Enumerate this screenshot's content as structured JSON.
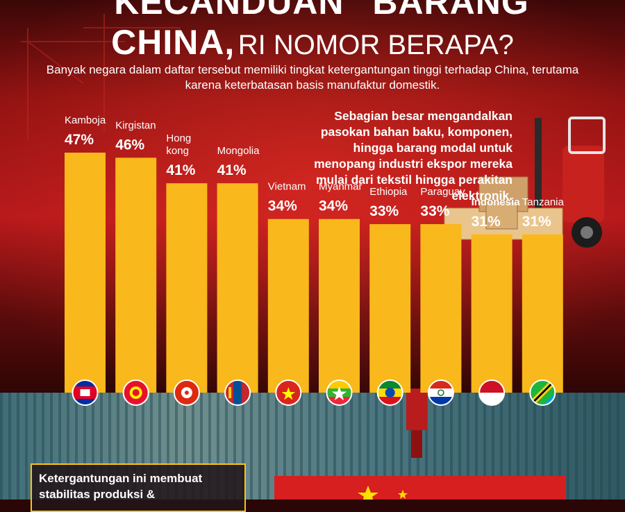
{
  "title_line1": "“KECANDUAN” BARANG",
  "title_line2_strong": "CHINA,",
  "title_line2_light": "RI NOMOR BERAPA?",
  "subtitle": "Banyak negara dalam daftar tersebut memiliki tingkat ketergantungan tinggi terhadap China, terutama karena keterbatasan basis manufaktur domestik.",
  "side_note": "Sebagian besar mengandalkan pasokan bahan baku, komponen, hingga barang modal untuk menopang industri ekspor mereka mulai dari tekstil hingga perakitan elektronik.",
  "bottom_note": "Ketergantungan ini membuat stabilitas produksi &",
  "colors": {
    "bar": "#f9b81b",
    "highlight": "#ffffff",
    "background": "#8e1111",
    "accent": "#f7c518"
  },
  "chart_data": {
    "type": "bar",
    "categories": [
      "Kamboja",
      "Kirgistan",
      "Hong kong",
      "Mongolia",
      "Vietnam",
      "Myanmar",
      "Ethiopia",
      "Paraguay",
      "Indonesia",
      "Tanzania"
    ],
    "values": [
      47,
      46,
      41,
      41,
      34,
      34,
      33,
      33,
      31,
      31
    ],
    "data_labels": [
      "47%",
      "46%",
      "41%",
      "41%",
      "34%",
      "34%",
      "33%",
      "33%",
      "31%",
      "31%"
    ],
    "highlight": "Indonesia",
    "flags": [
      "cambodia-flag-icon",
      "kyrgyzstan-flag-icon",
      "hong-kong-flag-icon",
      "mongolia-flag-icon",
      "vietnam-flag-icon",
      "myanmar-flag-icon",
      "ethiopia-flag-icon",
      "paraguay-flag-icon",
      "indonesia-flag-icon",
      "tanzania-flag-icon"
    ],
    "unit": "%",
    "ylim": [
      0,
      47
    ]
  }
}
